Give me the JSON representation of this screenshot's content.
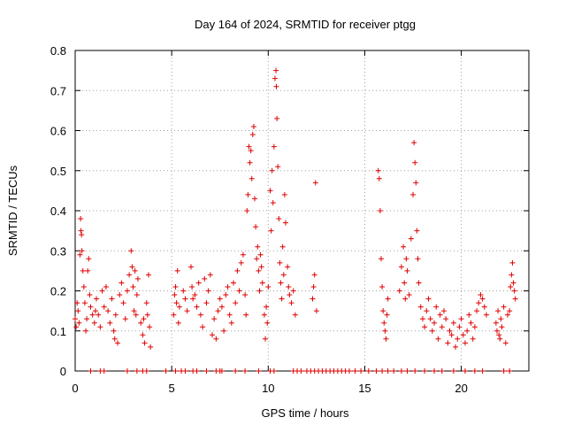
{
  "chart_data": {
    "type": "scatter",
    "title": "Day 164 of 2024, SRMTID for receiver ptgg",
    "xlabel": "GPS time / hours",
    "ylabel": "SRMTID / TECUs",
    "xlim": [
      0,
      23.5
    ],
    "ylim": [
      0,
      0.8
    ],
    "xticks": [
      0,
      5,
      10,
      15,
      20
    ],
    "yticks": [
      0,
      0.1,
      0.2,
      0.3,
      0.4,
      0.5,
      0.6,
      0.7,
      0.8
    ],
    "xtick_labels": [
      "0",
      "5",
      "10",
      "15",
      "20"
    ],
    "ytick_labels": [
      "0",
      "0.1",
      "0.2",
      "0.3",
      "0.4",
      "0.5",
      "0.6",
      "0.7",
      "0.8"
    ],
    "grid": true,
    "marker": "+",
    "color": "#e00000",
    "series": [
      {
        "name": "SRMTID",
        "points": [
          [
            0.0,
            0.13
          ],
          [
            0.05,
            0.11
          ],
          [
            0.1,
            0.17
          ],
          [
            0.15,
            0.15
          ],
          [
            0.2,
            0.12
          ],
          [
            0.25,
            0.29
          ],
          [
            0.28,
            0.38
          ],
          [
            0.3,
            0.35
          ],
          [
            0.33,
            0.34
          ],
          [
            0.35,
            0.3
          ],
          [
            0.4,
            0.25
          ],
          [
            0.45,
            0.21
          ],
          [
            0.5,
            0.17
          ],
          [
            0.55,
            0.1
          ],
          [
            0.6,
            0.13
          ],
          [
            0.65,
            0.25
          ],
          [
            0.7,
            0.28
          ],
          [
            0.75,
            0.19
          ],
          [
            0.8,
            0.16
          ],
          [
            0.9,
            0.14
          ],
          [
            1.0,
            0.12
          ],
          [
            1.05,
            0.15
          ],
          [
            1.1,
            0.18
          ],
          [
            1.2,
            0.14
          ],
          [
            1.3,
            0.11
          ],
          [
            1.4,
            0.2
          ],
          [
            1.5,
            0.16
          ],
          [
            1.6,
            0.21
          ],
          [
            1.7,
            0.15
          ],
          [
            1.8,
            0.12
          ],
          [
            1.9,
            0.18
          ],
          [
            2.0,
            0.1
          ],
          [
            2.05,
            0.08
          ],
          [
            2.1,
            0.14
          ],
          [
            2.2,
            0.07
          ],
          [
            2.3,
            0.19
          ],
          [
            2.4,
            0.22
          ],
          [
            2.5,
            0.17
          ],
          [
            2.6,
            0.13
          ],
          [
            2.7,
            0.2
          ],
          [
            2.8,
            0.24
          ],
          [
            2.9,
            0.3
          ],
          [
            2.95,
            0.26
          ],
          [
            3.0,
            0.21
          ],
          [
            3.05,
            0.15
          ],
          [
            3.1,
            0.25
          ],
          [
            3.15,
            0.14
          ],
          [
            3.2,
            0.19
          ],
          [
            3.25,
            0.23
          ],
          [
            3.4,
            0.12
          ],
          [
            3.5,
            0.09
          ],
          [
            3.55,
            0.13
          ],
          [
            3.6,
            0.07
          ],
          [
            3.7,
            0.17
          ],
          [
            3.75,
            0.14
          ],
          [
            3.8,
            0.24
          ],
          [
            3.85,
            0.11
          ],
          [
            3.9,
            0.06
          ],
          [
            5.1,
            0.14
          ],
          [
            5.15,
            0.19
          ],
          [
            5.2,
            0.21
          ],
          [
            5.25,
            0.17
          ],
          [
            5.3,
            0.25
          ],
          [
            5.35,
            0.12
          ],
          [
            5.4,
            0.16
          ],
          [
            5.6,
            0.2
          ],
          [
            5.7,
            0.18
          ],
          [
            5.8,
            0.15
          ],
          [
            6.0,
            0.26
          ],
          [
            6.05,
            0.21
          ],
          [
            6.1,
            0.18
          ],
          [
            6.2,
            0.19
          ],
          [
            6.3,
            0.16
          ],
          [
            6.4,
            0.22
          ],
          [
            6.5,
            0.14
          ],
          [
            6.6,
            0.11
          ],
          [
            6.7,
            0.23
          ],
          [
            6.8,
            0.17
          ],
          [
            6.9,
            0.2
          ],
          [
            7.0,
            0.24
          ],
          [
            7.1,
            0.09
          ],
          [
            7.2,
            0.13
          ],
          [
            7.3,
            0.08
          ],
          [
            7.4,
            0.15
          ],
          [
            7.5,
            0.18
          ],
          [
            7.6,
            0.16
          ],
          [
            7.7,
            0.1
          ],
          [
            7.8,
            0.19
          ],
          [
            7.9,
            0.21
          ],
          [
            8.0,
            0.14
          ],
          [
            8.1,
            0.12
          ],
          [
            8.2,
            0.22
          ],
          [
            8.3,
            0.17
          ],
          [
            8.4,
            0.25
          ],
          [
            8.5,
            0.2
          ],
          [
            8.6,
            0.27
          ],
          [
            8.7,
            0.29
          ],
          [
            8.8,
            0.19
          ],
          [
            8.85,
            0.14
          ],
          [
            8.9,
            0.4
          ],
          [
            8.95,
            0.44
          ],
          [
            9.0,
            0.56
          ],
          [
            9.05,
            0.52
          ],
          [
            9.1,
            0.55
          ],
          [
            9.15,
            0.48
          ],
          [
            9.2,
            0.59
          ],
          [
            9.25,
            0.61
          ],
          [
            9.3,
            0.43
          ],
          [
            9.35,
            0.36
          ],
          [
            9.4,
            0.28
          ],
          [
            9.45,
            0.31
          ],
          [
            9.5,
            0.25
          ],
          [
            9.55,
            0.2
          ],
          [
            9.6,
            0.29
          ],
          [
            9.65,
            0.26
          ],
          [
            9.7,
            0.22
          ],
          [
            9.8,
            0.14
          ],
          [
            9.85,
            0.08
          ],
          [
            9.9,
            0.16
          ],
          [
            9.95,
            0.12
          ],
          [
            10.0,
            0.21
          ],
          [
            10.1,
            0.45
          ],
          [
            10.15,
            0.35
          ],
          [
            10.2,
            0.5
          ],
          [
            10.25,
            0.42
          ],
          [
            10.3,
            0.56
          ],
          [
            10.35,
            0.73
          ],
          [
            10.4,
            0.75
          ],
          [
            10.42,
            0.71
          ],
          [
            10.45,
            0.63
          ],
          [
            10.5,
            0.51
          ],
          [
            10.55,
            0.38
          ],
          [
            10.6,
            0.27
          ],
          [
            10.65,
            0.22
          ],
          [
            10.7,
            0.18
          ],
          [
            10.75,
            0.31
          ],
          [
            10.8,
            0.24
          ],
          [
            10.85,
            0.44
          ],
          [
            10.9,
            0.37
          ],
          [
            11.0,
            0.26
          ],
          [
            11.05,
            0.21
          ],
          [
            11.1,
            0.19
          ],
          [
            11.2,
            0.17
          ],
          [
            11.3,
            0.2
          ],
          [
            11.4,
            0.14
          ],
          [
            12.3,
            0.18
          ],
          [
            12.35,
            0.21
          ],
          [
            12.4,
            0.24
          ],
          [
            12.45,
            0.47
          ],
          [
            12.5,
            0.15
          ],
          [
            15.7,
            0.5
          ],
          [
            15.75,
            0.48
          ],
          [
            15.8,
            0.4
          ],
          [
            15.85,
            0.28
          ],
          [
            15.9,
            0.21
          ],
          [
            15.95,
            0.15
          ],
          [
            16.0,
            0.12
          ],
          [
            16.05,
            0.1
          ],
          [
            16.1,
            0.08
          ],
          [
            16.15,
            0.14
          ],
          [
            16.2,
            0.18
          ],
          [
            16.8,
            0.2
          ],
          [
            16.9,
            0.26
          ],
          [
            17.0,
            0.31
          ],
          [
            17.05,
            0.22
          ],
          [
            17.1,
            0.18
          ],
          [
            17.15,
            0.28
          ],
          [
            17.2,
            0.25
          ],
          [
            17.3,
            0.19
          ],
          [
            17.4,
            0.33
          ],
          [
            17.5,
            0.44
          ],
          [
            17.55,
            0.57
          ],
          [
            17.6,
            0.52
          ],
          [
            17.65,
            0.47
          ],
          [
            17.7,
            0.35
          ],
          [
            17.75,
            0.28
          ],
          [
            17.8,
            0.22
          ],
          [
            17.9,
            0.16
          ],
          [
            18.0,
            0.13
          ],
          [
            18.1,
            0.11
          ],
          [
            18.2,
            0.15
          ],
          [
            18.3,
            0.18
          ],
          [
            18.4,
            0.13
          ],
          [
            18.5,
            0.1
          ],
          [
            18.6,
            0.12
          ],
          [
            18.7,
            0.16
          ],
          [
            18.8,
            0.08
          ],
          [
            18.9,
            0.14
          ],
          [
            19.0,
            0.11
          ],
          [
            19.1,
            0.15
          ],
          [
            19.2,
            0.13
          ],
          [
            19.3,
            0.07
          ],
          [
            19.4,
            0.1
          ],
          [
            19.5,
            0.09
          ],
          [
            19.6,
            0.12
          ],
          [
            19.7,
            0.06
          ],
          [
            19.8,
            0.08
          ],
          [
            19.9,
            0.11
          ],
          [
            20.0,
            0.13
          ],
          [
            20.1,
            0.09
          ],
          [
            20.2,
            0.07
          ],
          [
            20.3,
            0.1
          ],
          [
            20.4,
            0.14
          ],
          [
            20.5,
            0.12
          ],
          [
            20.6,
            0.08
          ],
          [
            20.7,
            0.11
          ],
          [
            20.8,
            0.15
          ],
          [
            20.9,
            0.17
          ],
          [
            21.0,
            0.19
          ],
          [
            21.1,
            0.18
          ],
          [
            21.2,
            0.16
          ],
          [
            21.3,
            0.14
          ],
          [
            21.8,
            0.12
          ],
          [
            21.85,
            0.1
          ],
          [
            21.9,
            0.15
          ],
          [
            21.95,
            0.09
          ],
          [
            22.0,
            0.08
          ],
          [
            22.05,
            0.13
          ],
          [
            22.1,
            0.11
          ],
          [
            22.2,
            0.16
          ],
          [
            22.3,
            0.07
          ],
          [
            22.4,
            0.14
          ],
          [
            22.5,
            0.15
          ],
          [
            22.55,
            0.21
          ],
          [
            22.6,
            0.24
          ],
          [
            22.65,
            0.27
          ],
          [
            22.7,
            0.22
          ],
          [
            22.75,
            0.2
          ],
          [
            22.8,
            0.18
          ]
        ]
      }
    ],
    "zero_points_x": [
      0.8,
      1.3,
      1.5,
      2.7,
      3.2,
      3.5,
      3.7,
      4.7,
      5.2,
      5.5,
      5.7,
      6.1,
      6.3,
      6.8,
      7.3,
      7.5,
      7.6,
      8.3,
      8.8,
      9.5,
      10.1,
      10.3,
      11.3,
      11.5,
      11.7,
      12.0,
      12.2,
      12.4,
      12.6,
      12.8,
      13.0,
      13.2,
      13.4,
      13.6,
      13.8,
      14.0,
      14.2,
      14.5,
      14.8,
      15.2,
      15.6,
      15.9,
      16.2,
      16.5,
      16.9,
      17.2,
      17.6,
      18.1,
      18.6,
      19.0,
      19.6,
      20.2,
      20.7,
      21.1,
      22.2,
      22.5
    ]
  }
}
